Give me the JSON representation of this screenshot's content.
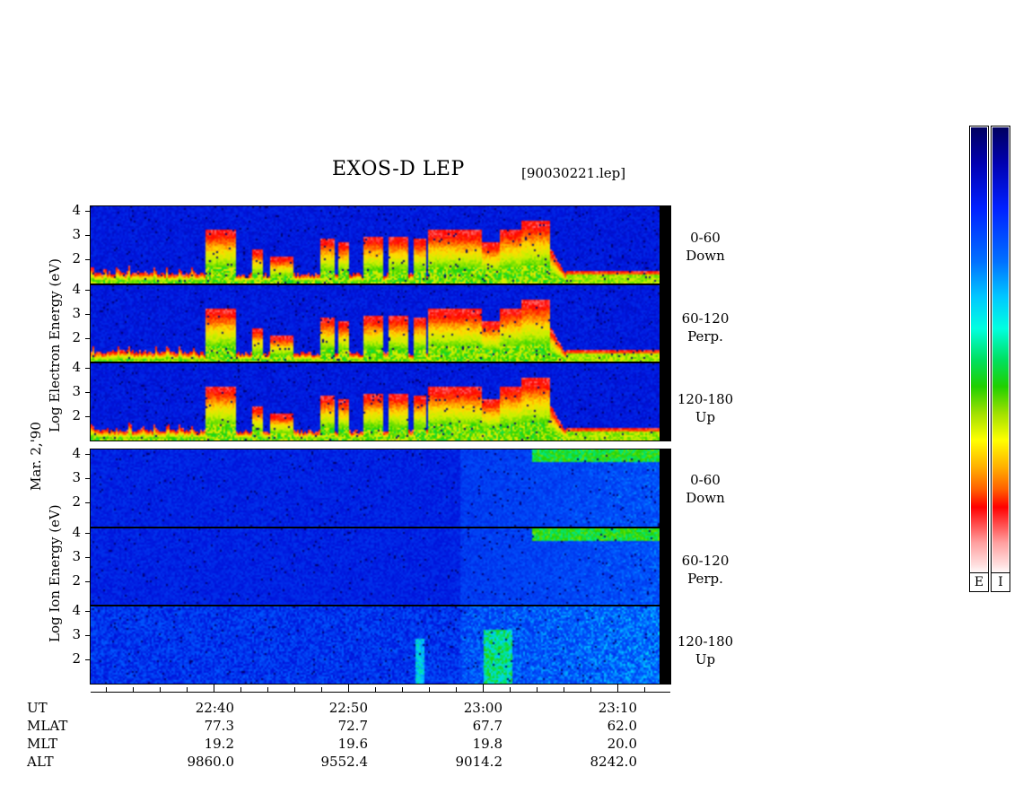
{
  "header": {
    "title": "EXOS-D LEP",
    "filename": "[90030221.lep]"
  },
  "electron": {
    "ylabel": "Log  Electron  Energy (eV)",
    "panels": [
      {
        "line1": "0-60",
        "line2": "Down"
      },
      {
        "line1": "60-120",
        "line2": "Perp."
      },
      {
        "line1": "120-180",
        "line2": "Up"
      }
    ]
  },
  "date_label": "Mar. 2,'90",
  "ion": {
    "ylabel": "Log  Ion  Energy (eV)",
    "panels": [
      {
        "line1": "0-60",
        "line2": "Down"
      },
      {
        "line1": "60-120",
        "line2": "Perp."
      },
      {
        "line1": "120-180",
        "line2": "Up"
      }
    ]
  },
  "yticks": [
    "4",
    "3",
    "2"
  ],
  "colorbar_labels": [
    "E",
    "I"
  ],
  "chart_data": {
    "type": "heatmap",
    "title": "EXOS-D LEP",
    "subtitle": "[90030221.lep]",
    "x_axis": {
      "label": "UT",
      "ticks": [
        "22:40",
        "22:50",
        "23:00",
        "23:10"
      ]
    },
    "y_axis": {
      "label": "Log Energy (eV)",
      "ticks": [
        4,
        3,
        2
      ],
      "range": [
        1,
        4.2
      ]
    },
    "panels": [
      {
        "species": "Electron",
        "pitch_angle": "0-60",
        "direction": "Down"
      },
      {
        "species": "Electron",
        "pitch_angle": "60-120",
        "direction": "Perp."
      },
      {
        "species": "Electron",
        "pitch_angle": "120-180",
        "direction": "Up"
      },
      {
        "species": "Ion",
        "pitch_angle": "0-60",
        "direction": "Down"
      },
      {
        "species": "Ion",
        "pitch_angle": "60-120",
        "direction": "Perp."
      },
      {
        "species": "Ion",
        "pitch_angle": "120-180",
        "direction": "Up"
      }
    ],
    "ephemeris": {
      "rows": [
        "UT",
        "MLAT",
        "MLT",
        "ALT"
      ],
      "columns": [
        {
          "UT": "22:40",
          "MLAT": "77.3",
          "MLT": "19.2",
          "ALT": "9860.0"
        },
        {
          "UT": "22:50",
          "MLAT": "72.7",
          "MLT": "19.6",
          "ALT": "9552.4"
        },
        {
          "UT": "23:00",
          "MLAT": "67.7",
          "MLT": "19.8",
          "ALT": "9014.2"
        },
        {
          "UT": "23:10",
          "MLAT": "62.0",
          "MLT": "20.0",
          "ALT": "8242.0"
        }
      ]
    },
    "colorbar": {
      "labels": [
        "E",
        "I"
      ],
      "scale": "blue (low) to red/white (high)"
    }
  }
}
